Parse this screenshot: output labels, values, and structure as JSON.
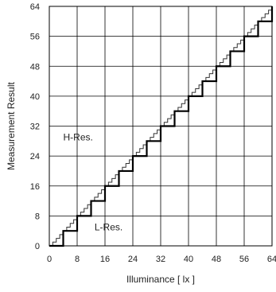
{
  "chart_data": {
    "type": "line",
    "title": "",
    "xlabel": "Illuminance [ lx ]",
    "ylabel": "Measurement Result",
    "xlim": [
      0,
      64
    ],
    "ylim": [
      0,
      64
    ],
    "x_ticks": [
      "0",
      "8",
      "16",
      "24",
      "32",
      "40",
      "48",
      "56",
      "64"
    ],
    "y_ticks": [
      "0",
      "8",
      "16",
      "24",
      "32",
      "40",
      "48",
      "56",
      "64"
    ],
    "grid": true,
    "legend": "none",
    "series": [
      {
        "name": "H-Res.",
        "style": "staircase",
        "step_width": 1,
        "step_height": 1,
        "x": [
          0,
          64
        ],
        "y": [
          0,
          64
        ]
      },
      {
        "name": "L-Res.",
        "style": "staircase",
        "step_width": 4,
        "step_height": 4,
        "x": [
          0,
          64
        ],
        "y": [
          0,
          64
        ]
      }
    ],
    "annotations": [
      {
        "text": "H-Res.",
        "x": 4,
        "y": 29
      },
      {
        "text": "L-Res.",
        "x": 13,
        "y": 5
      }
    ],
    "colors": {
      "axis": "#000000",
      "grid": "#000000",
      "h_res": "#333333",
      "l_res": "#000000"
    }
  }
}
